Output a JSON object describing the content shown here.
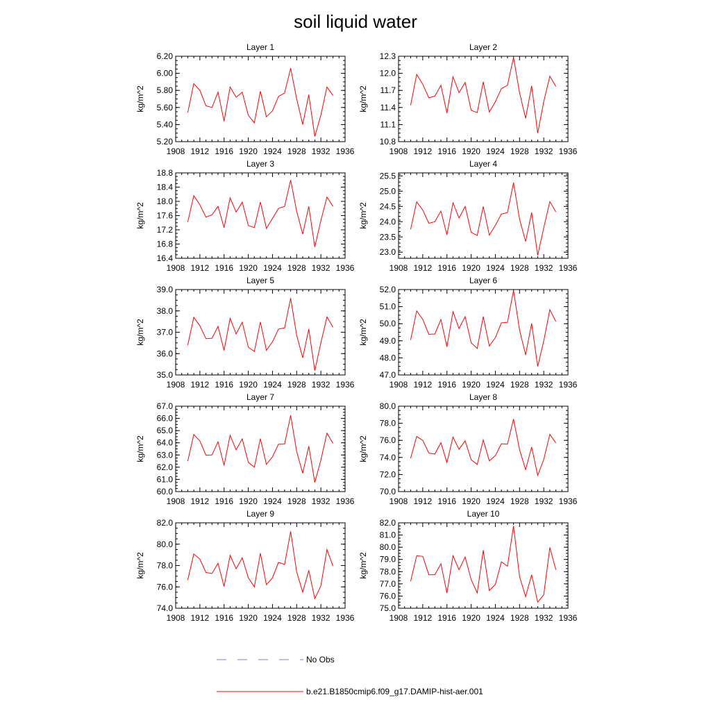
{
  "figure": {
    "title": "soil liquid water",
    "legend": [
      {
        "label": "No Obs",
        "color": "#7b7bcc",
        "dash": true
      },
      {
        "label": "b.e21.B1850cmip6.f09_g17.DAMIP-hist-aer.001",
        "color": "#ff0000",
        "dash": false
      }
    ]
  },
  "chart_data": [
    {
      "type": "line",
      "title": "Layer 1",
      "ylabel": "kg/m^2",
      "xlim": [
        1908,
        1936
      ],
      "ylim": [
        5.2,
        6.2
      ],
      "xticks": [
        "1908",
        "1912",
        "1916",
        "1920",
        "1924",
        "1928",
        "1932",
        "1936"
      ],
      "yticks": [
        "5.20",
        "5.40",
        "5.60",
        "5.80",
        "6.00",
        "6.20"
      ],
      "series": [
        {
          "color": "#ff0000",
          "x": [
            1910,
            1911,
            1912,
            1913,
            1914,
            1915,
            1916,
            1917,
            1918,
            1919,
            1920,
            1921,
            1922,
            1923,
            1924,
            1925,
            1926,
            1927,
            1928,
            1929,
            1930,
            1931,
            1932,
            1933,
            1934
          ],
          "values": [
            5.54,
            5.88,
            5.8,
            5.62,
            5.6,
            5.78,
            5.44,
            5.84,
            5.72,
            5.78,
            5.51,
            5.42,
            5.79,
            5.49,
            5.56,
            5.73,
            5.77,
            6.06,
            5.7,
            5.4,
            5.75,
            5.26,
            5.51,
            5.84,
            5.74
          ]
        }
      ]
    },
    {
      "type": "line",
      "title": "Layer 2",
      "ylabel": "kg/m^2",
      "xlim": [
        1908,
        1936
      ],
      "ylim": [
        10.8,
        12.3
      ],
      "xticks": [
        "1908",
        "1912",
        "1916",
        "1920",
        "1924",
        "1928",
        "1932",
        "1936"
      ],
      "yticks": [
        "10.8",
        "11.1",
        "11.4",
        "11.7",
        "12.0",
        "12.3"
      ],
      "series": [
        {
          "color": "#ff0000",
          "x": [
            1910,
            1911,
            1912,
            1913,
            1914,
            1915,
            1916,
            1917,
            1918,
            1919,
            1920,
            1921,
            1922,
            1923,
            1924,
            1925,
            1926,
            1927,
            1928,
            1929,
            1930,
            1931,
            1932,
            1933,
            1934
          ],
          "values": [
            11.44,
            11.98,
            11.81,
            11.57,
            11.6,
            11.79,
            11.3,
            11.94,
            11.66,
            11.84,
            11.35,
            11.31,
            11.85,
            11.32,
            11.5,
            11.73,
            11.79,
            12.28,
            11.66,
            11.21,
            11.78,
            10.95,
            11.5,
            11.95,
            11.77
          ]
        }
      ]
    },
    {
      "type": "line",
      "title": "Layer 3",
      "ylabel": "kg/m^2",
      "xlim": [
        1908,
        1936
      ],
      "ylim": [
        16.4,
        18.8
      ],
      "xticks": [
        "1908",
        "1912",
        "1916",
        "1920",
        "1924",
        "1928",
        "1932",
        "1936"
      ],
      "yticks": [
        "16.4",
        "16.8",
        "17.2",
        "17.6",
        "18.0",
        "18.4",
        "18.8"
      ],
      "series": [
        {
          "color": "#ff0000",
          "x": [
            1910,
            1911,
            1912,
            1913,
            1914,
            1915,
            1916,
            1917,
            1918,
            1919,
            1920,
            1921,
            1922,
            1923,
            1924,
            1925,
            1926,
            1927,
            1928,
            1929,
            1930,
            1931,
            1932,
            1933,
            1934
          ],
          "values": [
            17.42,
            18.16,
            17.9,
            17.56,
            17.62,
            17.86,
            17.26,
            18.1,
            17.7,
            17.98,
            17.32,
            17.26,
            17.98,
            17.24,
            17.52,
            17.8,
            17.86,
            18.6,
            17.72,
            17.08,
            17.86,
            16.72,
            17.46,
            18.12,
            17.86
          ]
        }
      ]
    },
    {
      "type": "line",
      "title": "Layer 4",
      "ylabel": "kg/m^2",
      "xlim": [
        1908,
        1936
      ],
      "ylim": [
        22.8,
        25.6
      ],
      "xticks": [
        "1908",
        "1912",
        "1916",
        "1920",
        "1924",
        "1928",
        "1932",
        "1936"
      ],
      "yticks": [
        "23.0",
        "23.5",
        "24.0",
        "24.5",
        "25.0",
        "25.5"
      ],
      "series": [
        {
          "color": "#ff0000",
          "x": [
            1910,
            1911,
            1912,
            1913,
            1914,
            1915,
            1916,
            1917,
            1918,
            1919,
            1920,
            1921,
            1922,
            1923,
            1924,
            1925,
            1926,
            1927,
            1928,
            1929,
            1930,
            1931,
            1932,
            1933,
            1934
          ],
          "values": [
            23.75,
            24.65,
            24.38,
            23.95,
            24.0,
            24.35,
            23.57,
            24.62,
            24.12,
            24.5,
            23.65,
            23.55,
            24.5,
            23.56,
            23.88,
            24.25,
            24.3,
            25.28,
            24.08,
            23.35,
            24.3,
            22.9,
            23.8,
            24.66,
            24.32
          ]
        }
      ]
    },
    {
      "type": "line",
      "title": "Layer 5",
      "ylabel": "kg/m^2",
      "xlim": [
        1908,
        1936
      ],
      "ylim": [
        35.0,
        39.0
      ],
      "xticks": [
        "1908",
        "1912",
        "1916",
        "1920",
        "1924",
        "1928",
        "1932",
        "1936"
      ],
      "yticks": [
        "35.0",
        "36.0",
        "37.0",
        "38.0",
        "39.0"
      ],
      "series": [
        {
          "color": "#ff0000",
          "x": [
            1910,
            1911,
            1912,
            1913,
            1914,
            1915,
            1916,
            1917,
            1918,
            1919,
            1920,
            1921,
            1922,
            1923,
            1924,
            1925,
            1926,
            1927,
            1928,
            1929,
            1930,
            1931,
            1932,
            1933,
            1934
          ],
          "values": [
            36.4,
            37.7,
            37.3,
            36.7,
            36.72,
            37.27,
            36.15,
            37.65,
            36.92,
            37.47,
            36.3,
            36.1,
            37.48,
            36.15,
            36.55,
            37.15,
            37.2,
            38.6,
            36.85,
            35.8,
            37.15,
            35.2,
            36.5,
            37.72,
            37.23
          ]
        }
      ]
    },
    {
      "type": "line",
      "title": "Layer 6",
      "ylabel": "kg/m^2",
      "xlim": [
        1908,
        1936
      ],
      "ylim": [
        47.0,
        52.0
      ],
      "xticks": [
        "1908",
        "1912",
        "1916",
        "1920",
        "1924",
        "1928",
        "1932",
        "1936"
      ],
      "yticks": [
        "47.0",
        "48.0",
        "49.0",
        "50.0",
        "51.0",
        "52.0"
      ],
      "series": [
        {
          "color": "#ff0000",
          "x": [
            1910,
            1911,
            1912,
            1913,
            1914,
            1915,
            1916,
            1917,
            1918,
            1919,
            1920,
            1921,
            1922,
            1923,
            1924,
            1925,
            1926,
            1927,
            1928,
            1929,
            1930,
            1931,
            1932,
            1933,
            1934
          ],
          "values": [
            49.05,
            50.75,
            50.25,
            49.38,
            49.4,
            50.25,
            48.65,
            50.7,
            49.72,
            50.42,
            48.88,
            48.55,
            50.42,
            48.7,
            49.18,
            50.05,
            50.08,
            51.95,
            49.62,
            48.18,
            50.02,
            47.5,
            48.98,
            50.82,
            50.12
          ]
        }
      ]
    },
    {
      "type": "line",
      "title": "Layer 7",
      "ylabel": "kg/m^2",
      "xlim": [
        1908,
        1936
      ],
      "ylim": [
        60.0,
        67.0
      ],
      "xticks": [
        "1908",
        "1912",
        "1916",
        "1920",
        "1924",
        "1928",
        "1932",
        "1936"
      ],
      "yticks": [
        "60.0",
        "61.0",
        "62.0",
        "63.0",
        "64.0",
        "65.0",
        "66.0",
        "67.0"
      ],
      "series": [
        {
          "color": "#ff0000",
          "x": [
            1910,
            1911,
            1912,
            1913,
            1914,
            1915,
            1916,
            1917,
            1918,
            1919,
            1920,
            1921,
            1922,
            1923,
            1924,
            1925,
            1926,
            1927,
            1928,
            1929,
            1930,
            1931,
            1932,
            1933,
            1934
          ],
          "values": [
            62.5,
            64.68,
            64.15,
            62.98,
            63.0,
            64.08,
            62.15,
            64.62,
            63.42,
            64.32,
            62.4,
            62.0,
            64.33,
            62.23,
            62.85,
            63.88,
            63.9,
            66.25,
            63.28,
            61.5,
            63.72,
            60.75,
            62.58,
            64.8,
            63.95
          ]
        }
      ]
    },
    {
      "type": "line",
      "title": "Layer 8",
      "ylabel": "kg/m^2",
      "xlim": [
        1908,
        1936
      ],
      "ylim": [
        70.0,
        80.0
      ],
      "xticks": [
        "1908",
        "1912",
        "1916",
        "1920",
        "1924",
        "1928",
        "1932",
        "1936"
      ],
      "yticks": [
        "70.0",
        "72.0",
        "74.0",
        "76.0",
        "78.0",
        "80.0"
      ],
      "series": [
        {
          "color": "#ff0000",
          "x": [
            1910,
            1911,
            1912,
            1913,
            1914,
            1915,
            1916,
            1917,
            1918,
            1919,
            1920,
            1921,
            1922,
            1923,
            1924,
            1925,
            1926,
            1927,
            1928,
            1929,
            1930,
            1931,
            1932,
            1933,
            1934
          ],
          "values": [
            73.9,
            76.45,
            76.0,
            74.5,
            74.4,
            75.72,
            73.4,
            76.38,
            74.95,
            75.95,
            73.72,
            73.18,
            76.05,
            73.6,
            74.2,
            75.6,
            75.55,
            78.5,
            74.9,
            72.58,
            75.22,
            71.9,
            73.75,
            76.7,
            75.68
          ]
        }
      ]
    },
    {
      "type": "line",
      "title": "Layer 9",
      "ylabel": "kg/m^2",
      "xlim": [
        1908,
        1936
      ],
      "ylim": [
        74.0,
        82.0
      ],
      "xticks": [
        "1908",
        "1912",
        "1916",
        "1920",
        "1924",
        "1928",
        "1932",
        "1936"
      ],
      "yticks": [
        "74.0",
        "76.0",
        "78.0",
        "80.0",
        "82.0"
      ],
      "series": [
        {
          "color": "#ff0000",
          "x": [
            1910,
            1911,
            1912,
            1913,
            1914,
            1915,
            1916,
            1917,
            1918,
            1919,
            1920,
            1921,
            1922,
            1923,
            1924,
            1925,
            1926,
            1927,
            1928,
            1929,
            1930,
            1931,
            1932,
            1933,
            1934
          ],
          "values": [
            76.65,
            79.08,
            78.6,
            77.35,
            77.25,
            78.2,
            76.05,
            78.95,
            77.7,
            78.72,
            76.85,
            76.0,
            79.15,
            76.2,
            76.85,
            78.3,
            78.1,
            81.2,
            77.4,
            75.5,
            77.55,
            74.9,
            76.1,
            79.5,
            77.95
          ]
        }
      ]
    },
    {
      "type": "line",
      "title": "Layer 10",
      "ylabel": "kg/m^2",
      "xlim": [
        1908,
        1936
      ],
      "ylim": [
        75.0,
        82.0
      ],
      "xticks": [
        "1908",
        "1912",
        "1916",
        "1920",
        "1924",
        "1928",
        "1932",
        "1936"
      ],
      "yticks": [
        "75.0",
        "76.0",
        "77.0",
        "78.0",
        "79.0",
        "80.0",
        "81.0",
        "82.0"
      ],
      "series": [
        {
          "color": "#ff0000",
          "x": [
            1910,
            1911,
            1912,
            1913,
            1914,
            1915,
            1916,
            1917,
            1918,
            1919,
            1920,
            1921,
            1922,
            1923,
            1924,
            1925,
            1926,
            1927,
            1928,
            1929,
            1930,
            1931,
            1932,
            1933,
            1934
          ],
          "values": [
            77.2,
            79.3,
            79.25,
            77.75,
            77.75,
            78.65,
            76.25,
            79.3,
            78.15,
            79.2,
            77.35,
            76.25,
            79.75,
            76.45,
            76.95,
            78.8,
            78.45,
            81.75,
            77.6,
            75.95,
            77.75,
            75.5,
            76.1,
            79.98,
            78.15
          ]
        }
      ]
    }
  ]
}
